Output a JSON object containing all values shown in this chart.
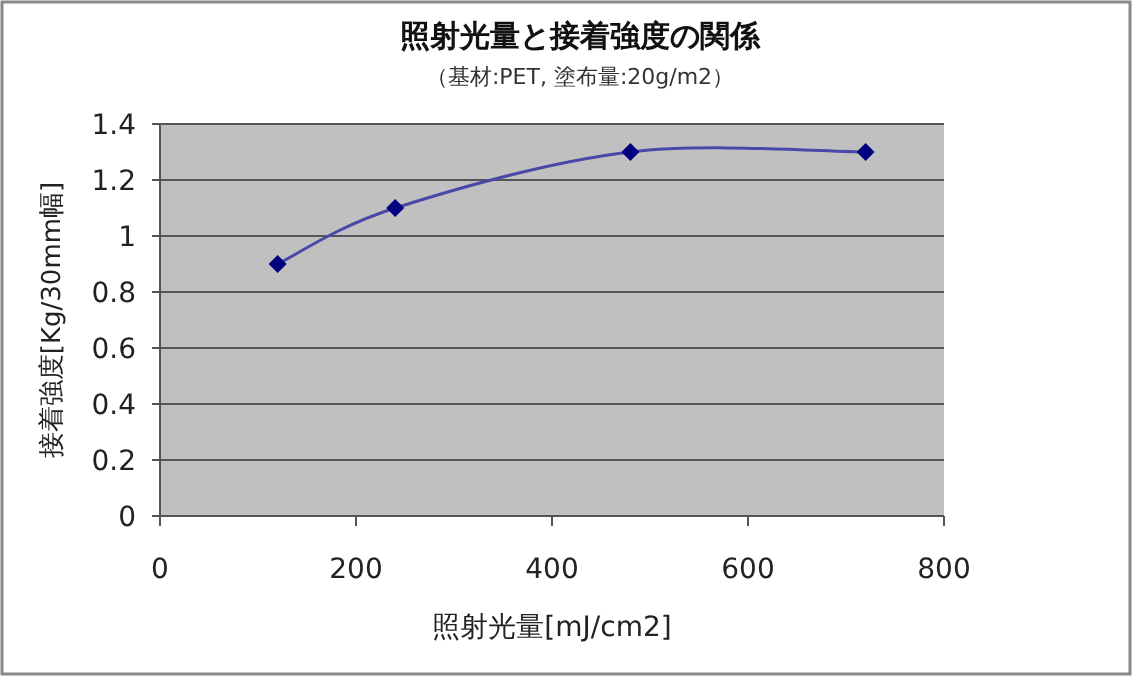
{
  "chart_data": {
    "type": "line",
    "title": "照射光量と接着強度の関係",
    "subtitle": "（基材:PET, 塗布量:20g/m2）",
    "xlabel": "照射光量[mJ/cm2]",
    "ylabel": "接着強度[Kg/30mm幅]",
    "x": [
      120,
      240,
      480,
      720
    ],
    "series": [
      {
        "color": "#000080",
        "values": [
          0.9,
          1.1,
          1.3,
          1.3
        ]
      }
    ],
    "xlim": [
      0,
      800
    ],
    "xticks": [
      0,
      200,
      400,
      600,
      800
    ],
    "ylim": [
      0,
      1.4
    ],
    "yticks": [
      0,
      0.2,
      0.4,
      0.6,
      0.8,
      1,
      1.2,
      1.4
    ],
    "grid": "y",
    "marker": "diamond",
    "line_style": "solid"
  }
}
